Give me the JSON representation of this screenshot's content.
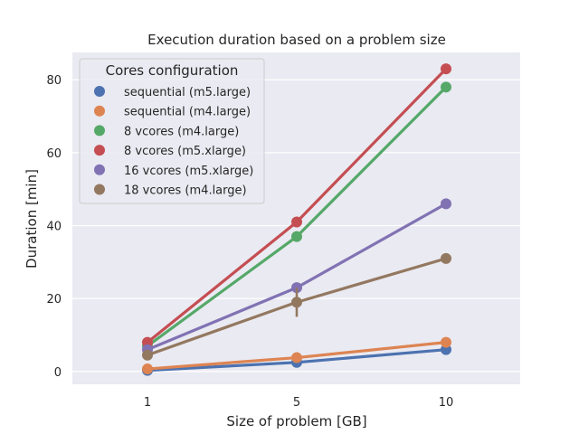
{
  "chart_data": {
    "type": "line",
    "title": "Execution duration based on a problem size",
    "xlabel": "Size of problem [GB]",
    "ylabel": "Duration [min]",
    "categories": [
      "1",
      "5",
      "10"
    ],
    "yticks": [
      0,
      20,
      40,
      60,
      80
    ],
    "ylim": [
      -3.5,
      87.5
    ],
    "grid": true,
    "legend": {
      "title": "Cores configuration",
      "placement": "top-left"
    },
    "series": [
      {
        "name": "sequential (m5.large)",
        "color": "#4c72b0",
        "values": [
          0.3,
          2.5,
          6.0
        ]
      },
      {
        "name": "sequential (m4.large)",
        "color": "#dd8452",
        "values": [
          0.7,
          3.8,
          8.0
        ]
      },
      {
        "name": "8 vcores (m4.large)",
        "color": "#55a868",
        "values": [
          7.0,
          37.0,
          78.0
        ]
      },
      {
        "name": "8 vcores (m5.xlarge)",
        "color": "#c44e52",
        "values": [
          8.0,
          41.0,
          83.0
        ]
      },
      {
        "name": "16 vcores (m5.xlarge)",
        "color": "#8172b3",
        "values": [
          6.0,
          23.0,
          46.0
        ]
      },
      {
        "name": "18 vcores (m4.large)",
        "color": "#937860",
        "values": [
          4.5,
          19.0,
          31.0
        ],
        "error_bars": [
          [
            4.5,
            4.5
          ],
          [
            15.0,
            23.0
          ],
          [
            31.0,
            31.0
          ]
        ]
      }
    ]
  }
}
